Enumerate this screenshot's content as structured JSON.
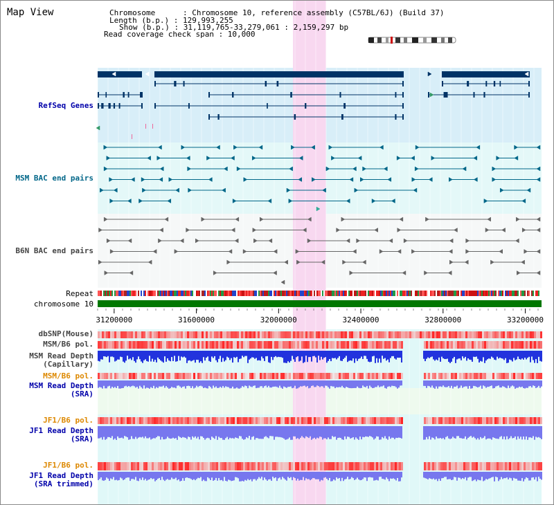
{
  "page": {
    "title": "Map View"
  },
  "info": {
    "line1": "Chromosome      : Chromosome 10, reference assembly (C57BL/6J) (Build 37)",
    "line2": "Length (b.p.) : 129,993,255",
    "line3": "Show (b.p.) : 31,119,765-33,279,061 : 2,159,297 bp",
    "line4": "Read coverage check span : 10,000"
  },
  "tracks": {
    "refseq": "RefSeq Genes",
    "msm_bac": "MSM BAC end pairs",
    "b6n_bac": "B6N BAC end pairs",
    "repeat": "Repeat",
    "chromosome": "chromosome 10",
    "dbsnp": "dbSNP(Mouse)",
    "msm_b6_pol_1": "MSM/B6 pol.",
    "msm_read_depth_cap_1": "MSM Read Depth",
    "msm_read_depth_cap_2": "(Capillary)",
    "msm_b6_pol_2": "MSM/B6 pol.",
    "msm_read_depth_sra_1": "MSM Read Depth",
    "msm_read_depth_sra_2": "(SRA)",
    "jf1_b6_pol_1": "JF1/B6 pol.",
    "jf1_read_depth_sra_1": "JF1 Read Depth",
    "jf1_read_depth_sra_2": "(SRA)",
    "jf1_b6_pol_2": "JF1/B6 pol.",
    "jf1_read_depth_trim_1": "JF1 Read Depth",
    "jf1_read_depth_trim_2": "(SRA trimmed)"
  },
  "axis": {
    "ticks": [
      "31200000",
      "31600000",
      "32000000",
      "32400000",
      "32800000",
      "33200000"
    ],
    "tick_values": [
      31200000,
      31600000,
      32000000,
      32400000,
      32800000,
      33200000
    ],
    "range": [
      31119765,
      33279061
    ]
  },
  "highlight": {
    "start": 32070000,
    "end": 32230000,
    "color": "#f8d8f0"
  },
  "colors": {
    "refseq_bg": "#d8eef8",
    "msm_bg": "#e4f8f8",
    "b6n_bg": "#f6f8f8",
    "depth_bg": "#e0f8f8",
    "sra_bg": "#eefaee",
    "gene": "#003366",
    "msm_bac": "#006688",
    "b6n_bac": "#666666",
    "chromosome": "#007700",
    "depth": "#2233dd",
    "depth_light": "#7777ee",
    "label_blue": "#0000aa",
    "label_orange": "#dd8800",
    "label_teal": "#006688",
    "label_gray": "#444444"
  },
  "icons": {
    "ideogram": "chromosome-ideogram"
  }
}
